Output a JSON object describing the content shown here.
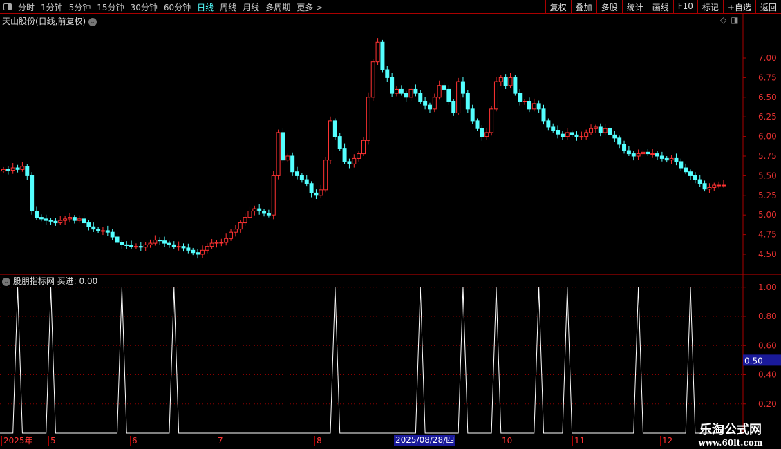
{
  "toolbar": {
    "periods": [
      "分时",
      "1分钟",
      "5分钟",
      "15分钟",
      "30分钟",
      "60分钟",
      "日线",
      "周线",
      "月线",
      "多周期",
      "更多 >"
    ],
    "active_period": "日线",
    "actions": [
      "复权",
      "叠加",
      "多股",
      "统计",
      "画线",
      "F10",
      "标记",
      "+自选",
      "返回"
    ]
  },
  "main": {
    "title": "天山股份(日线,前复权)"
  },
  "indicator": {
    "title": "股朋指标网",
    "value_text": "买进: 0.00",
    "cursor_value": "0.50"
  },
  "date_axis": {
    "labels": [
      "2025年",
      "5",
      "6",
      "7",
      "8",
      "10",
      "11",
      "12"
    ],
    "selected": "2025/08/28/四"
  },
  "watermark": {
    "line1": "乐淘公式网",
    "line2": "www.60lt.com"
  },
  "colors": {
    "up": "#ff3232",
    "down": "#54ffff",
    "grid": "#8b0000",
    "signal": "#ffffff",
    "accent": "#54ffff"
  },
  "chart_data": [
    {
      "type": "candlestick",
      "yticks": [
        "7.00",
        "6.75",
        "6.50",
        "6.25",
        "6.00",
        "5.75",
        "5.50",
        "5.25",
        "5.00",
        "4.75",
        "4.50"
      ],
      "ylim": [
        4.4,
        7.3
      ],
      "close": [
        5.58,
        5.57,
        5.6,
        5.58,
        5.62,
        5.5,
        5.05,
        4.97,
        4.95,
        4.93,
        4.92,
        4.9,
        4.93,
        4.95,
        4.97,
        4.93,
        4.95,
        4.9,
        4.85,
        4.82,
        4.8,
        4.8,
        4.78,
        4.72,
        4.65,
        4.62,
        4.61,
        4.6,
        4.6,
        4.59,
        4.62,
        4.64,
        4.68,
        4.67,
        4.64,
        4.62,
        4.6,
        4.6,
        4.58,
        4.55,
        4.52,
        4.5,
        4.55,
        4.6,
        4.64,
        4.65,
        4.65,
        4.7,
        4.78,
        4.82,
        4.9,
        4.97,
        5.05,
        5.08,
        5.05,
        5.02,
        5.0,
        5.5,
        6.05,
        5.7,
        5.75,
        5.55,
        5.5,
        5.45,
        5.4,
        5.28,
        5.25,
        5.32,
        5.7,
        6.2,
        6.0,
        5.85,
        5.68,
        5.65,
        5.72,
        5.78,
        5.95,
        6.5,
        6.95,
        7.2,
        6.85,
        6.75,
        6.55,
        6.6,
        6.55,
        6.5,
        6.6,
        6.55,
        6.45,
        6.4,
        6.35,
        6.5,
        6.65,
        6.6,
        6.45,
        6.3,
        6.7,
        6.55,
        6.35,
        6.2,
        6.1,
        6.0,
        6.05,
        6.35,
        6.7,
        6.75,
        6.65,
        6.75,
        6.55,
        6.45,
        6.45,
        6.35,
        6.42,
        6.35,
        6.2,
        6.12,
        6.08,
        6.03,
        6.0,
        6.05,
        6.02,
        6.0,
        6.0,
        6.05,
        6.1,
        6.12,
        6.05,
        6.1,
        6.02,
        5.98,
        5.9,
        5.82,
        5.78,
        5.75,
        5.78,
        5.8,
        5.78,
        5.78,
        5.75,
        5.72,
        5.7,
        5.72,
        5.68,
        5.6,
        5.55,
        5.5,
        5.45,
        5.4,
        5.33,
        5.35,
        5.38,
        5.38,
        5.38
      ]
    },
    {
      "type": "line",
      "name": "买进",
      "yticks": [
        "1.00",
        "0.80",
        "0.60",
        "0.40",
        "0.20"
      ],
      "ylim": [
        0,
        1.05
      ],
      "signal_indices": [
        3,
        10,
        25,
        36,
        70,
        88,
        97,
        104,
        113,
        119,
        134,
        145
      ],
      "signal_value": 1
    }
  ]
}
